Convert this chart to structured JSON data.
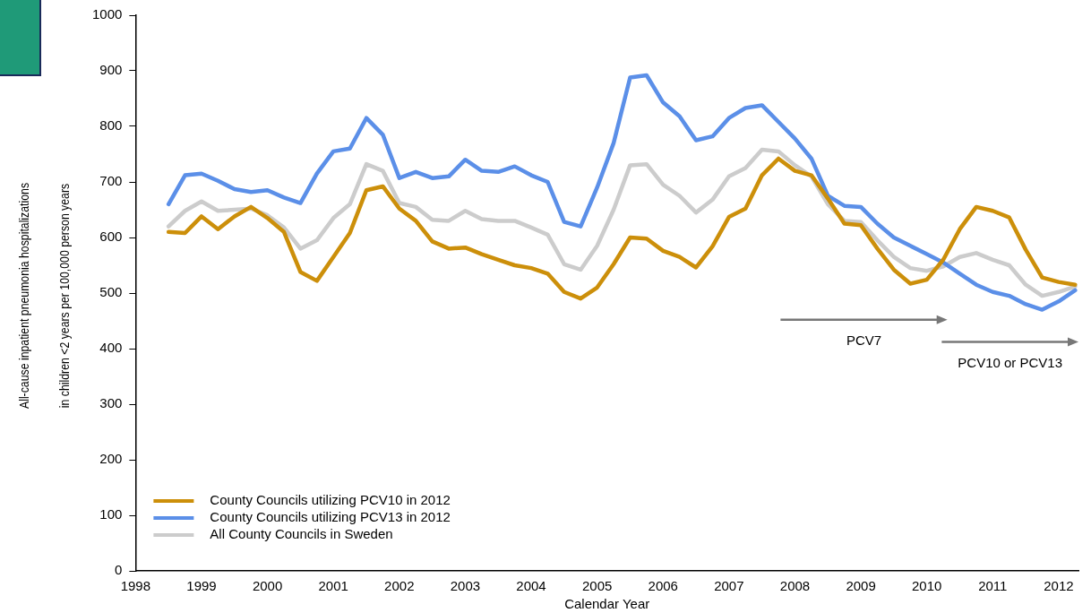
{
  "chart_data": {
    "type": "line",
    "xlabel": "Calendar Year",
    "ylabel": "All-cause inpatient pneumonia hospitalizations\nin children <2 years per 100,000 person years",
    "x": [
      1998.5,
      1998.75,
      1999,
      1999.25,
      1999.5,
      1999.75,
      2000,
      2000.25,
      2000.5,
      2000.75,
      2001,
      2001.25,
      2001.5,
      2001.75,
      2002,
      2002.25,
      2002.5,
      2002.75,
      2003,
      2003.25,
      2003.5,
      2003.75,
      2004,
      2004.25,
      2004.5,
      2004.75,
      2005,
      2005.25,
      2005.5,
      2005.75,
      2006,
      2006.25,
      2006.5,
      2006.75,
      2007,
      2007.25,
      2007.5,
      2007.75,
      2008,
      2008.25,
      2008.5,
      2008.75,
      2009,
      2009.25,
      2009.5,
      2009.75,
      2010,
      2010.25,
      2010.5,
      2010.75,
      2011,
      2011.25,
      2011.5,
      2011.75,
      2012,
      2012.25
    ],
    "series": [
      {
        "name": "County Councils utilizing PCV10 in 2012",
        "color": "#cc8f0a",
        "values": [
          610,
          608,
          638,
          615,
          638,
          655,
          635,
          610,
          538,
          522,
          565,
          608,
          685,
          692,
          652,
          630,
          593,
          580,
          582,
          570,
          560,
          550,
          545,
          535,
          502,
          490,
          510,
          552,
          600,
          598,
          576,
          565,
          546,
          584,
          637,
          652,
          712,
          742,
          720,
          712,
          670,
          625,
          622,
          580,
          542,
          517,
          524,
          560,
          615,
          655,
          648,
          636,
          578,
          528,
          520,
          515
        ]
      },
      {
        "name": "County Councils utilizing PCV13 in 2012",
        "color": "#5b8fe8",
        "values": [
          660,
          712,
          715,
          702,
          687,
          682,
          685,
          672,
          662,
          715,
          755,
          760,
          815,
          785,
          707,
          718,
          707,
          710,
          740,
          720,
          718,
          728,
          712,
          700,
          628,
          620,
          690,
          770,
          888,
          892,
          843,
          818,
          775,
          782,
          815,
          833,
          838,
          808,
          778,
          742,
          675,
          657,
          655,
          625,
          600,
          585,
          570,
          555,
          535,
          515,
          502,
          495,
          480,
          470,
          485,
          505
        ]
      },
      {
        "name": "All County Councils in Sweden",
        "color": "#cccccc",
        "values": [
          620,
          648,
          665,
          648,
          650,
          652,
          640,
          618,
          580,
          595,
          635,
          660,
          732,
          720,
          662,
          655,
          632,
          630,
          648,
          633,
          630,
          630,
          618,
          605,
          552,
          542,
          585,
          650,
          730,
          732,
          695,
          675,
          645,
          668,
          710,
          725,
          758,
          755,
          730,
          710,
          660,
          630,
          628,
          595,
          565,
          545,
          540,
          548,
          565,
          572,
          560,
          550,
          515,
          495,
          502,
          512
        ]
      }
    ],
    "xlim": [
      1998,
      2012.3
    ],
    "xticks": [
      1998,
      1999,
      2000,
      2001,
      2002,
      2003,
      2004,
      2005,
      2006,
      2007,
      2008,
      2009,
      2010,
      2011,
      2012
    ],
    "ylim": [
      0,
      1000
    ],
    "yticks": [
      0,
      100,
      200,
      300,
      400,
      500,
      600,
      700,
      800,
      900,
      1000
    ],
    "grid": false,
    "legend": "bottom left",
    "line_style": "solid",
    "marker": "none",
    "annotations": [
      "PCV7",
      "PCV10 or PCV13"
    ]
  }
}
